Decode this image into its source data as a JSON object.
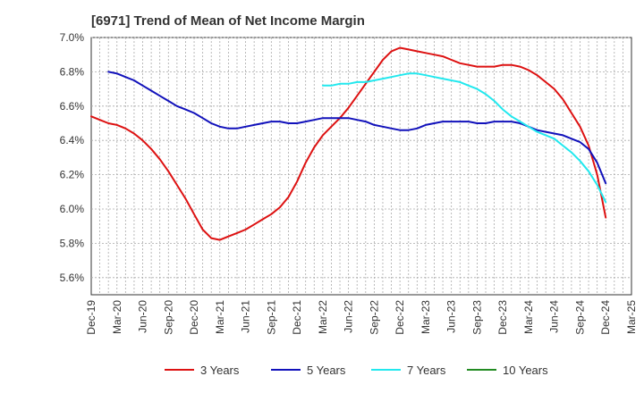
{
  "title": "[6971]  Trend of Mean of Net Income Margin",
  "chart_data": {
    "type": "line",
    "title": "[6971]  Trend of Mean of Net Income Margin",
    "xlabel": "",
    "ylabel": "",
    "ylim": [
      5.5,
      7.0
    ],
    "y_ticks": [
      "5.6%",
      "5.8%",
      "6.0%",
      "6.2%",
      "6.4%",
      "6.6%",
      "6.8%",
      "7.0%"
    ],
    "y_tick_values": [
      5.6,
      5.8,
      6.0,
      6.2,
      6.4,
      6.6,
      6.8,
      7.0
    ],
    "x_range": [
      "Dec-19",
      "Mar-25"
    ],
    "x_ticks": [
      "Dec-19",
      "Mar-20",
      "Jun-20",
      "Sep-20",
      "Dec-20",
      "Mar-21",
      "Jun-21",
      "Sep-21",
      "Dec-21",
      "Mar-22",
      "Jun-22",
      "Sep-22",
      "Dec-22",
      "Mar-23",
      "Jun-23",
      "Sep-23",
      "Dec-23",
      "Mar-24",
      "Jun-24",
      "Sep-24",
      "Dec-24",
      "Mar-25"
    ],
    "grid": true,
    "legend_position": "bottom",
    "series": [
      {
        "name": "3 Years",
        "color": "#dd1111",
        "points": [
          [
            "Dec-19",
            6.54
          ],
          [
            "Jan-20",
            6.52
          ],
          [
            "Feb-20",
            6.5
          ],
          [
            "Mar-20",
            6.49
          ],
          [
            "Apr-20",
            6.47
          ],
          [
            "May-20",
            6.44
          ],
          [
            "Jun-20",
            6.4
          ],
          [
            "Jul-20",
            6.35
          ],
          [
            "Aug-20",
            6.29
          ],
          [
            "Sep-20",
            6.22
          ],
          [
            "Oct-20",
            6.14
          ],
          [
            "Nov-20",
            6.06
          ],
          [
            "Dec-20",
            5.97
          ],
          [
            "Jan-21",
            5.88
          ],
          [
            "Feb-21",
            5.83
          ],
          [
            "Mar-21",
            5.82
          ],
          [
            "Apr-21",
            5.84
          ],
          [
            "May-21",
            5.86
          ],
          [
            "Jun-21",
            5.88
          ],
          [
            "Jul-21",
            5.91
          ],
          [
            "Aug-21",
            5.94
          ],
          [
            "Sep-21",
            5.97
          ],
          [
            "Oct-21",
            6.01
          ],
          [
            "Nov-21",
            6.07
          ],
          [
            "Dec-21",
            6.16
          ],
          [
            "Jan-22",
            6.27
          ],
          [
            "Feb-22",
            6.36
          ],
          [
            "Mar-22",
            6.43
          ],
          [
            "Apr-22",
            6.48
          ],
          [
            "May-22",
            6.53
          ],
          [
            "Jun-22",
            6.59
          ],
          [
            "Jul-22",
            6.66
          ],
          [
            "Aug-22",
            6.73
          ],
          [
            "Sep-22",
            6.8
          ],
          [
            "Oct-22",
            6.87
          ],
          [
            "Nov-22",
            6.92
          ],
          [
            "Dec-22",
            6.94
          ],
          [
            "Jan-23",
            6.93
          ],
          [
            "Feb-23",
            6.92
          ],
          [
            "Mar-23",
            6.91
          ],
          [
            "Apr-23",
            6.9
          ],
          [
            "May-23",
            6.89
          ],
          [
            "Jun-23",
            6.87
          ],
          [
            "Jul-23",
            6.85
          ],
          [
            "Aug-23",
            6.84
          ],
          [
            "Sep-23",
            6.83
          ],
          [
            "Oct-23",
            6.83
          ],
          [
            "Nov-23",
            6.83
          ],
          [
            "Dec-23",
            6.84
          ],
          [
            "Jan-24",
            6.84
          ],
          [
            "Feb-24",
            6.83
          ],
          [
            "Mar-24",
            6.81
          ],
          [
            "Apr-24",
            6.78
          ],
          [
            "May-24",
            6.74
          ],
          [
            "Jun-24",
            6.7
          ],
          [
            "Jul-24",
            6.64
          ],
          [
            "Aug-24",
            6.56
          ],
          [
            "Sep-24",
            6.48
          ],
          [
            "Oct-24",
            6.37
          ],
          [
            "Nov-24",
            6.2
          ],
          [
            "Dec-24",
            5.95
          ]
        ]
      },
      {
        "name": "5 Years",
        "color": "#1111bb",
        "points": [
          [
            "Feb-20",
            6.8
          ],
          [
            "Mar-20",
            6.79
          ],
          [
            "Apr-20",
            6.77
          ],
          [
            "May-20",
            6.75
          ],
          [
            "Jun-20",
            6.72
          ],
          [
            "Jul-20",
            6.69
          ],
          [
            "Aug-20",
            6.66
          ],
          [
            "Sep-20",
            6.63
          ],
          [
            "Oct-20",
            6.6
          ],
          [
            "Nov-20",
            6.58
          ],
          [
            "Dec-20",
            6.56
          ],
          [
            "Jan-21",
            6.53
          ],
          [
            "Feb-21",
            6.5
          ],
          [
            "Mar-21",
            6.48
          ],
          [
            "Apr-21",
            6.47
          ],
          [
            "May-21",
            6.47
          ],
          [
            "Jun-21",
            6.48
          ],
          [
            "Jul-21",
            6.49
          ],
          [
            "Aug-21",
            6.5
          ],
          [
            "Sep-21",
            6.51
          ],
          [
            "Oct-21",
            6.51
          ],
          [
            "Nov-21",
            6.5
          ],
          [
            "Dec-21",
            6.5
          ],
          [
            "Jan-22",
            6.51
          ],
          [
            "Feb-22",
            6.52
          ],
          [
            "Mar-22",
            6.53
          ],
          [
            "Apr-22",
            6.53
          ],
          [
            "May-22",
            6.53
          ],
          [
            "Jun-22",
            6.53
          ],
          [
            "Jul-22",
            6.52
          ],
          [
            "Aug-22",
            6.51
          ],
          [
            "Sep-22",
            6.49
          ],
          [
            "Oct-22",
            6.48
          ],
          [
            "Nov-22",
            6.47
          ],
          [
            "Dec-22",
            6.46
          ],
          [
            "Jan-23",
            6.46
          ],
          [
            "Feb-23",
            6.47
          ],
          [
            "Mar-23",
            6.49
          ],
          [
            "Apr-23",
            6.5
          ],
          [
            "May-23",
            6.51
          ],
          [
            "Jun-23",
            6.51
          ],
          [
            "Jul-23",
            6.51
          ],
          [
            "Aug-23",
            6.51
          ],
          [
            "Sep-23",
            6.5
          ],
          [
            "Oct-23",
            6.5
          ],
          [
            "Nov-23",
            6.51
          ],
          [
            "Dec-23",
            6.51
          ],
          [
            "Jan-24",
            6.51
          ],
          [
            "Feb-24",
            6.5
          ],
          [
            "Mar-24",
            6.48
          ],
          [
            "Apr-24",
            6.46
          ],
          [
            "May-24",
            6.45
          ],
          [
            "Jun-24",
            6.44
          ],
          [
            "Jul-24",
            6.43
          ],
          [
            "Aug-24",
            6.41
          ],
          [
            "Sep-24",
            6.39
          ],
          [
            "Oct-24",
            6.35
          ],
          [
            "Nov-24",
            6.27
          ],
          [
            "Dec-24",
            6.15
          ]
        ]
      },
      {
        "name": "7 Years",
        "color": "#22e8ee",
        "points": [
          [
            "Mar-22",
            6.72
          ],
          [
            "Apr-22",
            6.72
          ],
          [
            "May-22",
            6.73
          ],
          [
            "Jun-22",
            6.73
          ],
          [
            "Jul-22",
            6.74
          ],
          [
            "Aug-22",
            6.74
          ],
          [
            "Sep-22",
            6.75
          ],
          [
            "Oct-22",
            6.76
          ],
          [
            "Nov-22",
            6.77
          ],
          [
            "Dec-22",
            6.78
          ],
          [
            "Jan-23",
            6.79
          ],
          [
            "Feb-23",
            6.79
          ],
          [
            "Mar-23",
            6.78
          ],
          [
            "Apr-23",
            6.77
          ],
          [
            "May-23",
            6.76
          ],
          [
            "Jun-23",
            6.75
          ],
          [
            "Jul-23",
            6.74
          ],
          [
            "Aug-23",
            6.72
          ],
          [
            "Sep-23",
            6.7
          ],
          [
            "Oct-23",
            6.67
          ],
          [
            "Nov-23",
            6.63
          ],
          [
            "Dec-23",
            6.58
          ],
          [
            "Jan-24",
            6.54
          ],
          [
            "Feb-24",
            6.51
          ],
          [
            "Mar-24",
            6.48
          ],
          [
            "Apr-24",
            6.45
          ],
          [
            "May-24",
            6.43
          ],
          [
            "Jun-24",
            6.41
          ],
          [
            "Jul-24",
            6.37
          ],
          [
            "Aug-24",
            6.33
          ],
          [
            "Sep-24",
            6.28
          ],
          [
            "Oct-24",
            6.22
          ],
          [
            "Nov-24",
            6.14
          ],
          [
            "Dec-24",
            6.04
          ]
        ]
      },
      {
        "name": "10 Years",
        "color": "#228b22",
        "points": []
      }
    ]
  }
}
